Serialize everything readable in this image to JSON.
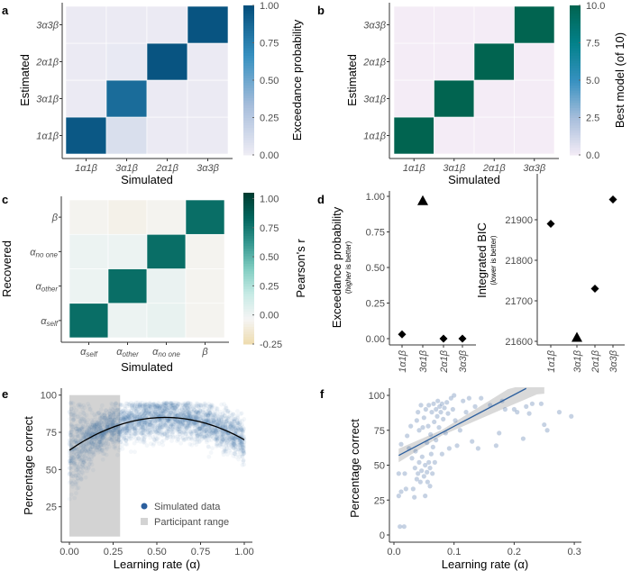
{
  "panel_letters": [
    "a",
    "b",
    "c",
    "d",
    "e",
    "f"
  ],
  "chart_data": [
    {
      "id": "a",
      "type": "heatmap",
      "xlabel": "Simulated",
      "ylabel": "Estimated",
      "x_categories": [
        "1α1β",
        "3α1β",
        "2α1β",
        "3α3β"
      ],
      "y_categories": [
        "1α1β",
        "3α1β",
        "2α1β",
        "3α3β"
      ],
      "values": [
        [
          0.95,
          0.1,
          0.02,
          0.02
        ],
        [
          0.02,
          0.85,
          0.02,
          0.02
        ],
        [
          0.02,
          0.03,
          0.97,
          0.02
        ],
        [
          0.02,
          0.02,
          0.02,
          0.97
        ]
      ],
      "values_note": "rows = estimated (bottom to top), columns = simulated",
      "colorbar": {
        "title": "Exceedance probability",
        "range": [
          0,
          1
        ],
        "ticks": [
          "0.00",
          "0.25",
          "0.50",
          "0.75",
          "1.00"
        ],
        "colors": [
          "#efedf5",
          "#a6bddb",
          "#3690c0",
          "#034e7b"
        ]
      }
    },
    {
      "id": "b",
      "type": "heatmap",
      "xlabel": "Simulated",
      "ylabel": "Estimated",
      "x_categories": [
        "1α1β",
        "3α1β",
        "2α1β",
        "3α3β"
      ],
      "y_categories": [
        "1α1β",
        "3α1β",
        "2α1β",
        "3α3β"
      ],
      "values": [
        [
          10,
          0,
          0,
          0
        ],
        [
          0,
          10,
          0,
          0
        ],
        [
          0,
          0,
          10,
          0
        ],
        [
          0,
          0,
          0,
          10
        ]
      ],
      "colorbar": {
        "title": "Best model (of 10)",
        "range": [
          0,
          10
        ],
        "ticks": [
          "0.0",
          "2.5",
          "5.0",
          "7.5",
          "10.0"
        ],
        "colors": [
          "#f4ecf6",
          "#a6bddb",
          "#3690c0",
          "#02818a",
          "#016450"
        ]
      }
    },
    {
      "id": "c",
      "type": "heatmap",
      "xlabel": "Simulated",
      "ylabel": "Recovered",
      "x_categories": [
        {
          "main": "α",
          "sub": "self"
        },
        {
          "main": "α",
          "sub": "other"
        },
        {
          "main": "α",
          "sub": "no one"
        },
        {
          "main": "β",
          "sub": ""
        }
      ],
      "y_categories": [
        {
          "main": "α",
          "sub": "self"
        },
        {
          "main": "α",
          "sub": "other"
        },
        {
          "main": "α",
          "sub": "no one"
        },
        {
          "main": "β",
          "sub": ""
        }
      ],
      "values": [
        [
          0.8,
          0.01,
          0.03,
          -0.05
        ],
        [
          0.01,
          0.8,
          0.02,
          -0.05
        ],
        [
          0.01,
          0.01,
          0.8,
          -0.05
        ],
        [
          -0.05,
          -0.07,
          -0.05,
          0.8
        ]
      ],
      "colorbar": {
        "title": "Pearson's r",
        "range": [
          -0.25,
          1.05
        ],
        "ticks": [
          "-0.25",
          "0.00",
          "0.25",
          "0.50",
          "0.75",
          "1.00"
        ],
        "colors": [
          "#eedbac",
          "#f5f5f5",
          "#c7eae5",
          "#80cdc1",
          "#35978f",
          "#01665e",
          "#003c30"
        ]
      }
    },
    {
      "id": "d1",
      "type": "scatter",
      "categories": [
        "1α1β",
        "3α1β",
        "2α1β",
        "3α3β"
      ],
      "values": [
        0.03,
        0.97,
        0.0,
        0.0
      ],
      "markers": [
        "diamond",
        "triangle",
        "diamond",
        "diamond"
      ],
      "ylabel": "Exceedance probability",
      "ylabel_note_italic": "higher",
      "ylabel_note_rest": " is better)",
      "ylabel_note_open": "(",
      "ylim": [
        0,
        1
      ],
      "yticks": [
        "0.00",
        "0.25",
        "0.50",
        "0.75",
        "1.00"
      ]
    },
    {
      "id": "d2",
      "type": "scatter",
      "categories": [
        "1α1β",
        "3α1β",
        "2α1β",
        "3α3β"
      ],
      "values": [
        21890,
        21610,
        21730,
        21950
      ],
      "markers": [
        "diamond",
        "triangle",
        "diamond",
        "diamond"
      ],
      "ylabel": "Integrated BIC",
      "ylabel_note_italic": "lower",
      "ylabel_note_rest": " is better)",
      "ylabel_note_open": "(",
      "ylim": [
        21600,
        21960
      ],
      "yticks": [
        "21600",
        "21700",
        "21800",
        "21900"
      ]
    },
    {
      "id": "e",
      "type": "scatter",
      "xlabel": "Learning rate (α)",
      "ylabel": "Percentage correct",
      "xlim": [
        0,
        1
      ],
      "ylim": [
        5,
        100
      ],
      "xticks": [
        "0.00",
        "0.25",
        "0.50",
        "0.75",
        "1.00"
      ],
      "yticks": [
        "25",
        "50",
        "75",
        "100"
      ],
      "series_color": "#2c5f9e",
      "simulated_fit": {
        "type": "quadratic",
        "points": [
          [
            0,
            63
          ],
          [
            0.55,
            85
          ],
          [
            1,
            70
          ]
        ]
      },
      "participant_range": {
        "x": [
          0,
          0.29
        ],
        "y": [
          5,
          100
        ]
      },
      "legend": [
        {
          "label": "Simulated data",
          "color": "#2c5f9e"
        },
        {
          "label": "Participant range",
          "color": "#d3d3d3"
        }
      ],
      "legend_position": "bottom-right"
    },
    {
      "id": "f",
      "type": "scatter",
      "xlabel": "Learning rate (α)",
      "ylabel": "Percentage correct",
      "xlim": [
        0,
        0.3
      ],
      "ylim": [
        0,
        100
      ],
      "xticks": [
        "0.0",
        "0.1",
        "0.2",
        "0.3"
      ],
      "yticks": [
        "0",
        "25",
        "50",
        "75",
        "100"
      ],
      "series_color": "#5b7fb0",
      "regression": {
        "from": [
          0.008,
          57
        ],
        "to": [
          0.22,
          105
        ]
      },
      "points": [
        [
          0.008,
          44
        ],
        [
          0.008,
          28
        ],
        [
          0.01,
          6
        ],
        [
          0.017,
          6
        ],
        [
          0.012,
          31
        ],
        [
          0.018,
          44
        ],
        [
          0.012,
          65
        ],
        [
          0.02,
          33
        ],
        [
          0.022,
          71
        ],
        [
          0.025,
          62
        ],
        [
          0.028,
          78
        ],
        [
          0.03,
          55
        ],
        [
          0.032,
          33
        ],
        [
          0.034,
          27
        ],
        [
          0.035,
          48
        ],
        [
          0.036,
          60
        ],
        [
          0.038,
          82
        ],
        [
          0.038,
          40
        ],
        [
          0.04,
          44
        ],
        [
          0.04,
          88
        ],
        [
          0.042,
          52
        ],
        [
          0.042,
          75
        ],
        [
          0.044,
          38
        ],
        [
          0.045,
          93
        ],
        [
          0.046,
          46
        ],
        [
          0.047,
          56
        ],
        [
          0.048,
          77
        ],
        [
          0.05,
          42
        ],
        [
          0.05,
          84
        ],
        [
          0.052,
          50
        ],
        [
          0.052,
          28
        ],
        [
          0.053,
          90
        ],
        [
          0.055,
          45
        ],
        [
          0.055,
          66
        ],
        [
          0.056,
          38
        ],
        [
          0.057,
          78
        ],
        [
          0.058,
          52
        ],
        [
          0.058,
          93
        ],
        [
          0.06,
          48
        ],
        [
          0.06,
          35
        ],
        [
          0.061,
          72
        ],
        [
          0.062,
          58
        ],
        [
          0.063,
          88
        ],
        [
          0.064,
          44
        ],
        [
          0.065,
          63
        ],
        [
          0.066,
          94
        ],
        [
          0.067,
          81
        ],
        [
          0.068,
          52
        ],
        [
          0.07,
          90
        ],
        [
          0.07,
          68
        ],
        [
          0.072,
          85
        ],
        [
          0.073,
          96
        ],
        [
          0.075,
          77
        ],
        [
          0.076,
          92
        ],
        [
          0.078,
          88
        ],
        [
          0.08,
          58
        ],
        [
          0.08,
          94
        ],
        [
          0.082,
          83
        ],
        [
          0.084,
          91
        ],
        [
          0.086,
          73
        ],
        [
          0.088,
          95
        ],
        [
          0.09,
          87
        ],
        [
          0.092,
          62
        ],
        [
          0.095,
          98
        ],
        [
          0.098,
          90
        ],
        [
          0.1,
          100
        ],
        [
          0.102,
          82
        ],
        [
          0.105,
          64
        ],
        [
          0.11,
          75
        ],
        [
          0.115,
          96
        ],
        [
          0.12,
          88
        ],
        [
          0.125,
          98
        ],
        [
          0.13,
          67
        ],
        [
          0.135,
          92
        ],
        [
          0.14,
          62
        ],
        [
          0.145,
          98
        ],
        [
          0.16,
          93
        ],
        [
          0.17,
          64
        ],
        [
          0.175,
          73
        ],
        [
          0.18,
          96
        ],
        [
          0.185,
          90
        ],
        [
          0.2,
          90
        ],
        [
          0.205,
          88
        ],
        [
          0.215,
          69
        ],
        [
          0.22,
          92
        ],
        [
          0.225,
          87
        ],
        [
          0.23,
          94
        ],
        [
          0.245,
          94
        ],
        [
          0.25,
          79
        ],
        [
          0.255,
          75
        ],
        [
          0.275,
          88
        ],
        [
          0.295,
          85
        ]
      ]
    }
  ]
}
